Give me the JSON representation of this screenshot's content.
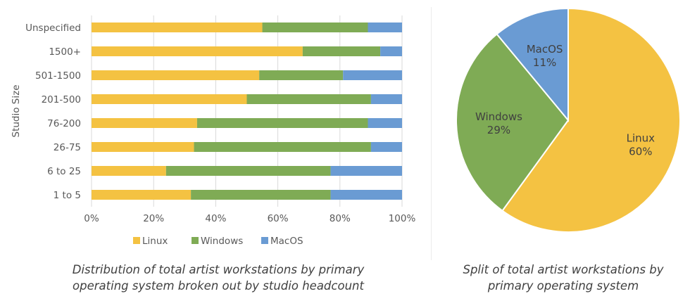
{
  "chart_data": [
    {
      "type": "bar",
      "orientation": "horizontal",
      "stacked": "percent",
      "ylabel": "Studio Size",
      "categories": [
        "Unspecified",
        "1500+",
        "501-1500",
        "201-500",
        "76-200",
        "26-75",
        "6 to 25",
        "1 to 5"
      ],
      "series": [
        {
          "name": "Linux",
          "color": "#f4c242",
          "values": [
            55,
            68,
            54,
            50,
            34,
            33,
            24,
            32
          ]
        },
        {
          "name": "Windows",
          "color": "#7fab55",
          "values": [
            34,
            25,
            27,
            40,
            55,
            57,
            53,
            45
          ]
        },
        {
          "name": "MacOS",
          "color": "#6a9bd3",
          "values": [
            11,
            7,
            19,
            10,
            11,
            10,
            23,
            23
          ]
        }
      ],
      "xlim": [
        0,
        100
      ],
      "xticks": [
        "0%",
        "20%",
        "40%",
        "60%",
        "80%",
        "100%"
      ],
      "legend": "bottom",
      "grid": "vertical",
      "caption_lines": [
        "Distribution of total artist workstations by primary",
        "operating system broken out by studio headcount"
      ]
    },
    {
      "type": "pie",
      "slices": [
        {
          "label": "Linux",
          "value": 60,
          "display": "60%",
          "color": "#f4c242"
        },
        {
          "label": "Windows",
          "value": 29,
          "display": "29%",
          "color": "#7fab55"
        },
        {
          "label": "MacOS",
          "value": 11,
          "display": "11%",
          "color": "#6a9bd3"
        }
      ],
      "caption_lines": [
        "Split of total artist workstations by",
        "primary operating system"
      ]
    }
  ]
}
